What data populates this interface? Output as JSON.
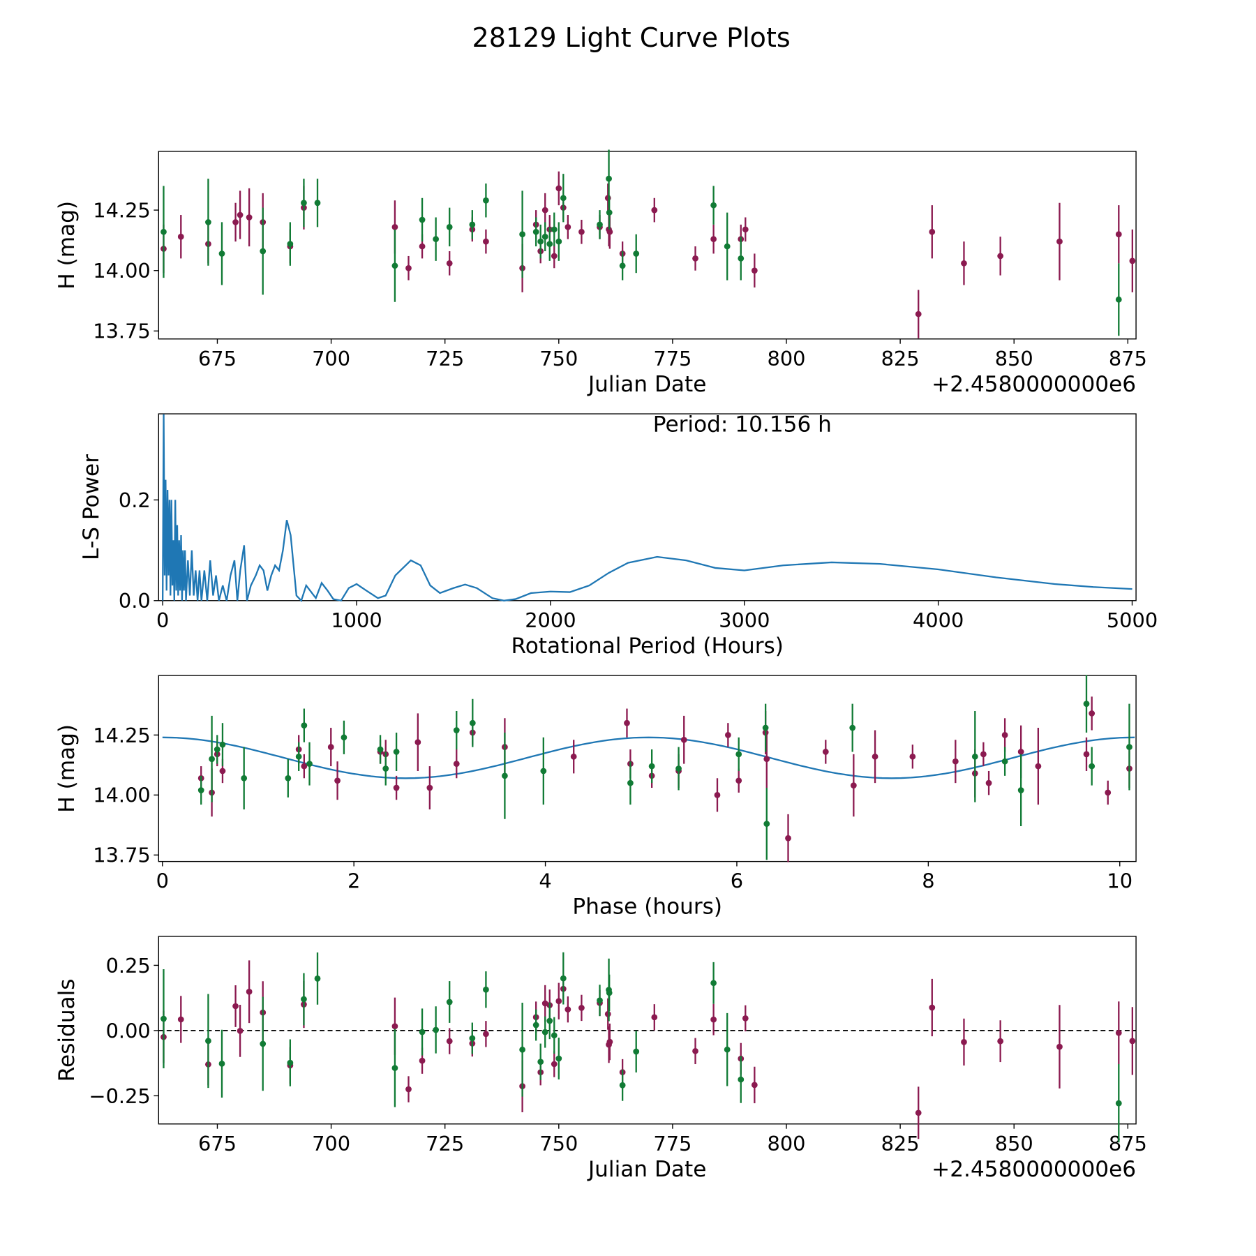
{
  "title": "28129 Light Curve Plots",
  "colors": {
    "purple": "#8b1a50",
    "green": "#117b35",
    "model": "#1f77b4"
  },
  "chart_data": [
    {
      "id": "lightcurve",
      "type": "scatter",
      "xlabel": "Julian Date",
      "x_offset_label": "+2.4580000000e6",
      "ylabel": "H (mag)",
      "xlim": [
        662.1,
        876.8
      ],
      "ylim": [
        13.717,
        14.493
      ],
      "xticks": [
        675,
        700,
        725,
        750,
        775,
        800,
        825,
        850,
        875
      ],
      "yticks": [
        13.75,
        14.0,
        14.25
      ],
      "ytick_labels": [
        "13.75",
        "14.00",
        "14.25"
      ],
      "series": [
        {
          "name": "purple",
          "points": [
            [
              663.2,
              14.09,
              0.1
            ],
            [
              667,
              14.14,
              0.09
            ],
            [
              673,
              14.11,
              0.08
            ],
            [
              679,
              14.2,
              0.08
            ],
            [
              680,
              14.23,
              0.1
            ],
            [
              682,
              14.22,
              0.12
            ],
            [
              685,
              14.2,
              0.12
            ],
            [
              691,
              14.1,
              0.07
            ],
            [
              694,
              14.26,
              0.09
            ],
            [
              714,
              14.18,
              0.11
            ],
            [
              717,
              14.01,
              0.05
            ],
            [
              720,
              14.1,
              0.05
            ],
            [
              726,
              14.03,
              0.05
            ],
            [
              731,
              14.17,
              0.05
            ],
            [
              734,
              14.12,
              0.05
            ],
            [
              742,
              14.01,
              0.1
            ],
            [
              745,
              14.19,
              0.06
            ],
            [
              746,
              14.08,
              0.05
            ],
            [
              747,
              14.25,
              0.07
            ],
            [
              748,
              14.17,
              0.06
            ],
            [
              749,
              14.06,
              0.05
            ],
            [
              750,
              14.34,
              0.07
            ],
            [
              751,
              14.26,
              0.05
            ],
            [
              752,
              14.18,
              0.05
            ],
            [
              755,
              14.16,
              0.05
            ],
            [
              759,
              14.18,
              0.05
            ],
            [
              760.8,
              14.3,
              0.06
            ],
            [
              761,
              14.17,
              0.07
            ],
            [
              761.2,
              14.16,
              0.07
            ],
            [
              764,
              14.07,
              0.05
            ],
            [
              771,
              14.25,
              0.05
            ],
            [
              780,
              14.05,
              0.05
            ],
            [
              784,
              14.13,
              0.06
            ],
            [
              790,
              14.13,
              0.06
            ],
            [
              791,
              14.17,
              0.05
            ],
            [
              793,
              14.0,
              0.07
            ],
            [
              829,
              13.82,
              0.1
            ],
            [
              832,
              14.16,
              0.11
            ],
            [
              839,
              14.03,
              0.09
            ],
            [
              847,
              14.06,
              0.08
            ],
            [
              860,
              14.12,
              0.16
            ],
            [
              873,
              14.15,
              0.12
            ],
            [
              876,
              14.04,
              0.13
            ]
          ]
        },
        {
          "name": "green",
          "points": [
            [
              663.2,
              14.16,
              0.19
            ],
            [
              673,
              14.2,
              0.18
            ],
            [
              676,
              14.07,
              0.13
            ],
            [
              685,
              14.08,
              0.18
            ],
            [
              691,
              14.11,
              0.09
            ],
            [
              694,
              14.28,
              0.1
            ],
            [
              697,
              14.28,
              0.1
            ],
            [
              714,
              14.02,
              0.15
            ],
            [
              720,
              14.21,
              0.09
            ],
            [
              723,
              14.13,
              0.09
            ],
            [
              726,
              14.18,
              0.08
            ],
            [
              731,
              14.19,
              0.06
            ],
            [
              734,
              14.29,
              0.07
            ],
            [
              742,
              14.15,
              0.18
            ],
            [
              745,
              14.16,
              0.06
            ],
            [
              746,
              14.12,
              0.07
            ],
            [
              747,
              14.14,
              0.06
            ],
            [
              748,
              14.11,
              0.07
            ],
            [
              749,
              14.17,
              0.07
            ],
            [
              750,
              14.12,
              0.08
            ],
            [
              751,
              14.3,
              0.1
            ],
            [
              759,
              14.19,
              0.06
            ],
            [
              761,
              14.38,
              0.12
            ],
            [
              761.1,
              14.24,
              0.07
            ],
            [
              764,
              14.02,
              0.06
            ],
            [
              767,
              14.07,
              0.08
            ],
            [
              784,
              14.27,
              0.08
            ],
            [
              787,
              14.1,
              0.14
            ],
            [
              790,
              14.05,
              0.09
            ],
            [
              873,
              13.88,
              0.15
            ]
          ]
        }
      ]
    },
    {
      "id": "periodogram",
      "type": "line",
      "xlabel": "Rotational Period (Hours)",
      "ylabel": "L-S Power",
      "annotation": "Period: 10.156 h",
      "xlim": [
        -21,
        5020
      ],
      "ylim": [
        0,
        0.371
      ],
      "xticks": [
        0,
        1000,
        2000,
        3000,
        4000,
        5000
      ],
      "yticks": [
        0.0,
        0.2
      ],
      "ytick_labels": [
        "0.0",
        "0.2"
      ],
      "x": [
        5,
        10,
        15,
        20,
        25,
        30,
        35,
        40,
        45,
        50,
        55,
        60,
        65,
        70,
        75,
        80,
        85,
        90,
        95,
        100,
        105,
        110,
        115,
        120,
        130,
        140,
        150,
        160,
        170,
        180,
        190,
        200,
        215,
        230,
        245,
        260,
        275,
        290,
        310,
        330,
        350,
        370,
        385,
        400,
        420,
        435,
        455,
        480,
        500,
        520,
        540,
        560,
        580,
        600,
        620,
        640,
        660,
        690,
        715,
        740,
        760,
        790,
        820,
        850,
        880,
        920,
        960,
        1000,
        1050,
        1110,
        1150,
        1200,
        1280,
        1330,
        1380,
        1430,
        1500,
        1560,
        1620,
        1700,
        1760,
        1820,
        1900,
        2000,
        2100,
        2200,
        2300,
        2400,
        2550,
        2700,
        2850,
        3000,
        3200,
        3450,
        3700,
        4000,
        4300,
        4600,
        4800,
        5000
      ],
      "y": [
        0.37,
        0.05,
        0.24,
        0.02,
        0.22,
        0.05,
        0.2,
        0.01,
        0.2,
        0.03,
        0.12,
        0.0,
        0.2,
        0.02,
        0.15,
        0.01,
        0.12,
        0.02,
        0.13,
        0.0,
        0.1,
        0.02,
        0.1,
        0.0,
        0.08,
        0.01,
        0.1,
        0.01,
        0.06,
        0.0,
        0.06,
        0.0,
        0.06,
        0.0,
        0.08,
        0.01,
        0.05,
        0.0,
        0.03,
        0.0,
        0.05,
        0.08,
        0.0,
        0.06,
        0.11,
        0.0,
        0.03,
        0.05,
        0.07,
        0.06,
        0.02,
        0.05,
        0.07,
        0.06,
        0.1,
        0.16,
        0.13,
        0.01,
        0.0,
        0.03,
        0.02,
        0.005,
        0.035,
        0.02,
        0.003,
        0.0,
        0.025,
        0.033,
        0.02,
        0.005,
        0.01,
        0.05,
        0.08,
        0.07,
        0.03,
        0.015,
        0.025,
        0.032,
        0.025,
        0.005,
        0.0,
        0.003,
        0.015,
        0.018,
        0.017,
        0.03,
        0.055,
        0.075,
        0.087,
        0.08,
        0.065,
        0.06,
        0.07,
        0.076,
        0.073,
        0.062,
        0.046,
        0.033,
        0.027,
        0.023
      ]
    },
    {
      "id": "phased",
      "type": "scatter",
      "xlabel": "Phase (hours)",
      "ylabel": "H (mag)",
      "period_hours": 10.156,
      "model": {
        "mean": 14.155,
        "amplitude": 0.085,
        "harmonic_period_hours": 5.078
      },
      "xlim": [
        -0.04,
        10.17
      ],
      "ylim": [
        13.723,
        14.498
      ],
      "xticks": [
        0,
        2,
        4,
        6,
        8,
        10
      ],
      "yticks": [
        13.75,
        14.0,
        14.25
      ],
      "ytick_labels": [
        "13.75",
        "14.00",
        "14.25"
      ]
    },
    {
      "id": "residuals",
      "type": "scatter",
      "xlabel": "Julian Date",
      "x_offset_label": "+2.4580000000e6",
      "ylabel": "Residuals",
      "xlim": [
        662.1,
        876.8
      ],
      "ylim": [
        -0.358,
        0.361
      ],
      "xticks": [
        675,
        700,
        725,
        750,
        775,
        800,
        825,
        850,
        875
      ],
      "yticks": [
        -0.25,
        0.0,
        0.25
      ],
      "ytick_labels": [
        "−0.25",
        "0.00",
        "0.25"
      ]
    }
  ]
}
